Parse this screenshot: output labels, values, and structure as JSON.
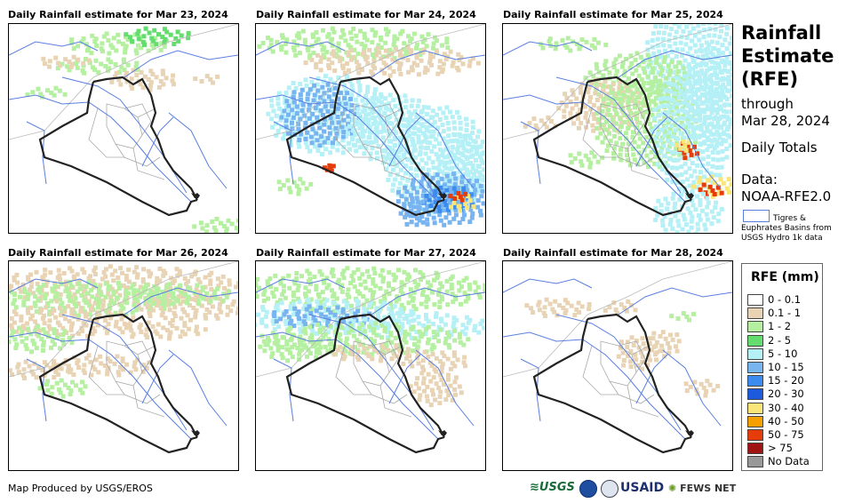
{
  "panels": [
    {
      "title": "Daily Rainfall estimate for Mar 23, 2024"
    },
    {
      "title": "Daily Rainfall estimate for Mar 24, 2024"
    },
    {
      "title": "Daily Rainfall estimate for Mar 25, 2024"
    },
    {
      "title": "Daily Rainfall estimate for Mar 26, 2024"
    },
    {
      "title": "Daily Rainfall estimate for Mar 27, 2024"
    },
    {
      "title": "Daily Rainfall estimate for Mar 28, 2024"
    }
  ],
  "sidebar": {
    "title_line1": "Rainfall",
    "title_line2": "Estimate",
    "title_line3": "(RFE)",
    "through_label": "through",
    "through_date": "Mar 28, 2024",
    "totals_label": "Daily Totals",
    "data_label": "Data:",
    "data_source": "NOAA-RFE2.0",
    "basin_legend_line1": "Tigres &",
    "basin_legend_line2": "Euphrates Basins from",
    "basin_legend_line3": "USGS Hydro 1k data",
    "basin_color": "#5a7fe0"
  },
  "legend": {
    "title": "RFE (mm)",
    "items": [
      {
        "label": "0 - 0.1",
        "color": "#ffffff"
      },
      {
        "label": "0.1 - 1",
        "color": "#e8d4b4"
      },
      {
        "label": "1 - 2",
        "color": "#b4f0a0"
      },
      {
        "label": "2 - 5",
        "color": "#64dc6e"
      },
      {
        "label": "5 - 10",
        "color": "#b4f0f5"
      },
      {
        "label": "10 - 15",
        "color": "#78b4f0"
      },
      {
        "label": "15 - 20",
        "color": "#3c8cf0"
      },
      {
        "label": "20 - 30",
        "color": "#1e5adc"
      },
      {
        "label": "30 - 40",
        "color": "#fae678"
      },
      {
        "label": "40 - 50",
        "color": "#f5a000"
      },
      {
        "label": "50 - 75",
        "color": "#e63c0a"
      },
      {
        "label": "> 75",
        "color": "#a01414"
      },
      {
        "label": "No Data",
        "color": "#999999"
      }
    ]
  },
  "footer": {
    "credit": "Map Produced by USGS/EROS",
    "logos": [
      "USGS",
      "NOAA",
      "USAID",
      "FEWS NET"
    ]
  }
}
